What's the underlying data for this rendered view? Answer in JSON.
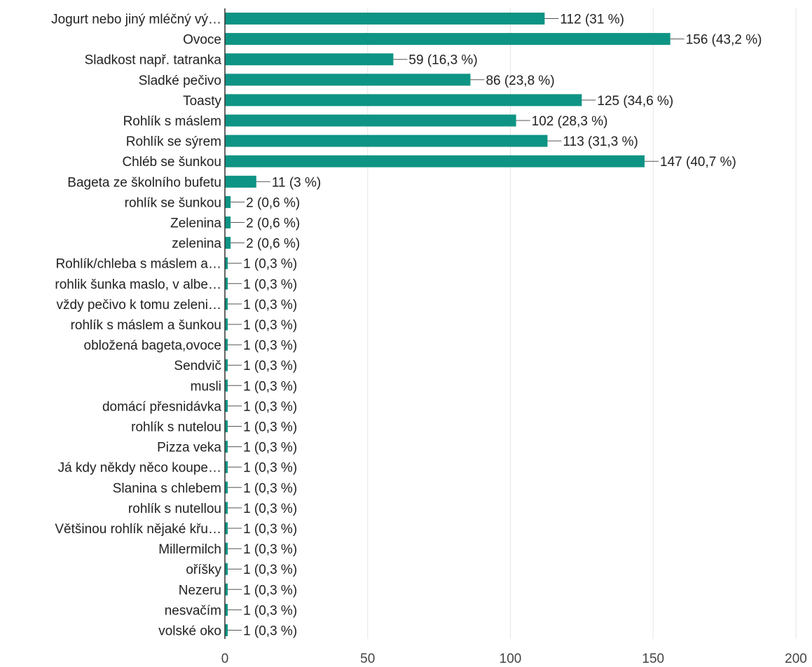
{
  "chart_data": {
    "type": "bar",
    "orientation": "horizontal",
    "title": "",
    "xlabel": "",
    "ylabel": "",
    "xlim": [
      0,
      200
    ],
    "x_ticks": [
      0,
      50,
      100,
      150,
      200
    ],
    "grid": true,
    "bar_color": "#0e9484",
    "categories": [
      "Jogurt nebo jiný mléčný vý…",
      "Ovoce",
      "Sladkost např. tatranka",
      "Sladké pečivo",
      "Toasty",
      "Rohlík s máslem",
      "Rohlík se sýrem",
      "Chléb se šunkou",
      "Bageta ze školního bufetu",
      "rohlík se šunkou",
      "Zelenina",
      "zelenina",
      "Rohlík/chleba s máslem a…",
      "rohlik šunka maslo, v albe…",
      "vždy pečivo k tomu zeleni…",
      "rohlík s máslem a šunkou",
      "obložená bageta,ovoce",
      "Sendvič",
      "musli",
      "domácí přesnidávka",
      "rohlík s nutelou",
      "Pizza veka",
      "Já kdy někdy něco koupe…",
      "Slanina s chlebem",
      "rohlík s nutellou",
      "Většinou rohlík nějaké křu…",
      "Millermilch",
      "oříšky",
      "Nezeru",
      "nesvačím",
      "volské oko"
    ],
    "values": [
      112,
      156,
      59,
      86,
      125,
      102,
      113,
      147,
      11,
      2,
      2,
      2,
      1,
      1,
      1,
      1,
      1,
      1,
      1,
      1,
      1,
      1,
      1,
      1,
      1,
      1,
      1,
      1,
      1,
      1,
      1
    ],
    "labels": [
      "112 (31 %)",
      "156 (43,2 %)",
      "59 (16,3 %)",
      "86 (23,8 %)",
      "125 (34,6 %)",
      "102 (28,3 %)",
      "113 (31,3 %)",
      "147 (40,7 %)",
      "11 (3 %)",
      "2 (0,6 %)",
      "2 (0,6 %)",
      "2 (0,6 %)",
      "1 (0,3 %)",
      "1 (0,3 %)",
      "1 (0,3 %)",
      "1 (0,3 %)",
      "1 (0,3 %)",
      "1 (0,3 %)",
      "1 (0,3 %)",
      "1 (0,3 %)",
      "1 (0,3 %)",
      "1 (0,3 %)",
      "1 (0,3 %)",
      "1 (0,3 %)",
      "1 (0,3 %)",
      "1 (0,3 %)",
      "1 (0,3 %)",
      "1 (0,3 %)",
      "1 (0,3 %)",
      "1 (0,3 %)",
      "1 (0,3 %)"
    ]
  }
}
